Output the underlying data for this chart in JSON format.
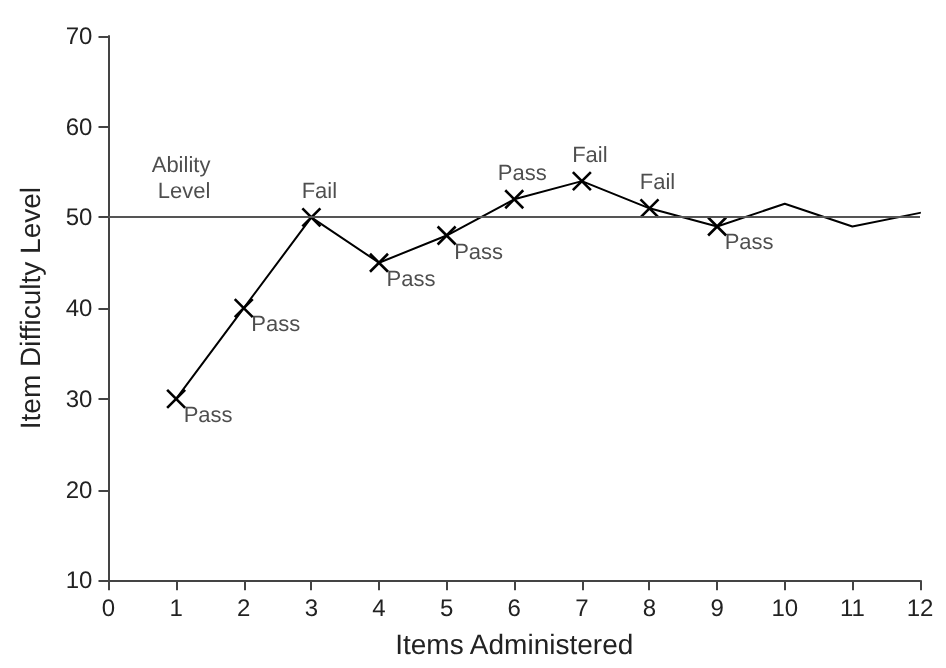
{
  "chart_data": {
    "type": "line",
    "xlabel": "Items Administered",
    "ylabel": "Item Difficulty Level",
    "xlim": [
      0,
      12
    ],
    "xticks": [
      0,
      1,
      2,
      3,
      4,
      5,
      6,
      7,
      8,
      9,
      10,
      11,
      12
    ],
    "ylim": [
      10,
      70
    ],
    "yticks": [
      10,
      20,
      30,
      40,
      50,
      60,
      70
    ],
    "grid": false,
    "series": [
      {
        "color": "#000000",
        "marker": "cross",
        "x": [
          1,
          2,
          3,
          4,
          5,
          6,
          7,
          8,
          9
        ],
        "values": [
          30,
          40,
          50,
          45,
          48,
          52,
          54,
          51,
          49
        ]
      },
      {
        "color": "#000000",
        "marker": "none",
        "x": [
          9,
          10,
          11,
          12
        ],
        "values": [
          49,
          51.5,
          49,
          50.5
        ]
      }
    ],
    "ref_lines": [
      {
        "axis": "y",
        "value": 50,
        "color": "#555555"
      }
    ],
    "annotations": [
      {
        "text": "Ability Level",
        "x": 1,
        "y": 50
      },
      {
        "text": "Pass",
        "x": 1,
        "y": 30
      },
      {
        "text": "Pass",
        "x": 2,
        "y": 40
      },
      {
        "text": "Fail",
        "x": 3,
        "y": 50
      },
      {
        "text": "Pass",
        "x": 4,
        "y": 45
      },
      {
        "text": "Pass",
        "x": 5,
        "y": 48
      },
      {
        "text": "Pass",
        "x": 6,
        "y": 52
      },
      {
        "text": "Fail",
        "x": 7,
        "y": 54
      },
      {
        "text": "Fail",
        "x": 8,
        "y": 51
      },
      {
        "text": "Pass",
        "x": 9,
        "y": 49
      }
    ]
  }
}
